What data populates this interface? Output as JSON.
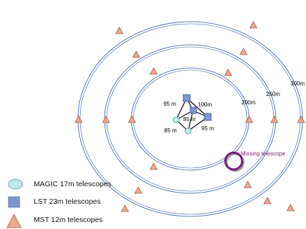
{
  "rings": [
    {
      "label": "200m"
    },
    {
      "label": "250m"
    },
    {
      "label": "300m"
    }
  ],
  "distances": {
    "d_95_top": "95 m",
    "d_100": "100m",
    "d_85_center": "85 m",
    "d_85_left": "85 m",
    "d_95_bottom": "95 m"
  },
  "missing": {
    "label": "Missing telescope",
    "color": "#7a1a7a"
  },
  "legend": [
    {
      "label": "MAGIC 17m telescopes",
      "icon": "magic-ellipse-icon",
      "color": "#bfe9e6"
    },
    {
      "label": "LST 23m telescopes",
      "icon": "lst-square-icon",
      "color": "#7b97cf"
    },
    {
      "label": "MST 12m telescopes",
      "icon": "mst-triangle-icon",
      "color": "#f2a98a"
    }
  ],
  "colors": {
    "ring": "#2b56a6",
    "mst_fill": "#f2a98a",
    "mst_stroke": "#a05a45",
    "lst_fill": "#7b97cf",
    "lst_stroke": "#3b5a9a",
    "magic_fill": "#bfe9e6",
    "magic_stroke": "#4a9e99"
  }
}
